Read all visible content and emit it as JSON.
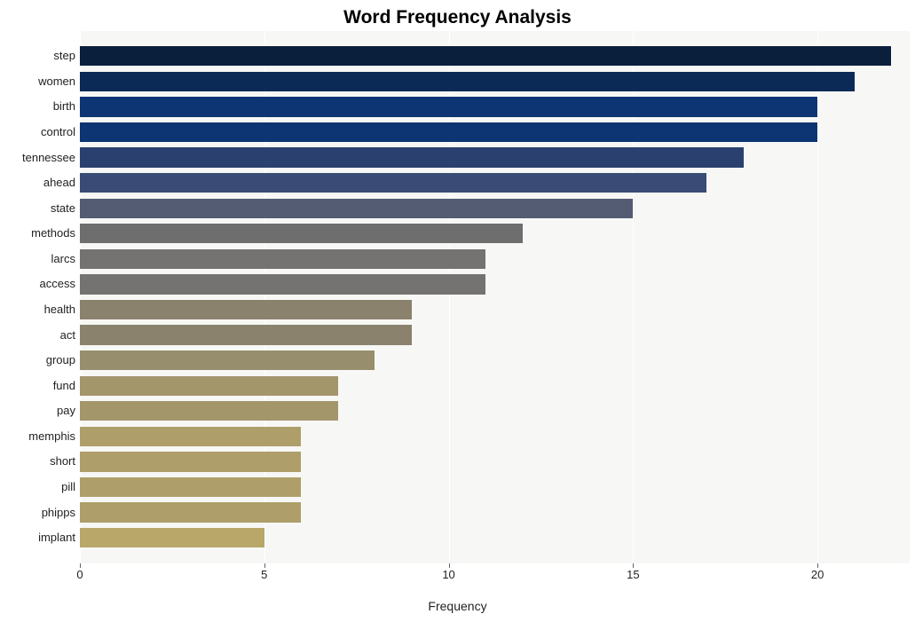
{
  "chart": {
    "type": "bar",
    "title": "Word Frequency Analysis",
    "title_fontsize": 21,
    "title_fontweight": "bold",
    "xlabel": "Frequency",
    "label_fontsize": 14,
    "background_color": "#ffffff",
    "plot_background": "#f7f7f5",
    "grid_color": "#ffffff",
    "xlim": [
      0,
      22.5
    ],
    "xtick_step": 5,
    "xticks": [
      0,
      5,
      10,
      15,
      20
    ],
    "bar_height_ratio": 0.78,
    "categories": [
      "step",
      "women",
      "birth",
      "control",
      "tennessee",
      "ahead",
      "state",
      "methods",
      "larcs",
      "access",
      "health",
      "act",
      "group",
      "fund",
      "pay",
      "memphis",
      "short",
      "pill",
      "phipps",
      "implant"
    ],
    "values": [
      22,
      21,
      20,
      20,
      18,
      17,
      15,
      12,
      11,
      11,
      9,
      9,
      8,
      7,
      7,
      6,
      6,
      6,
      6,
      5
    ],
    "bar_colors": [
      "#0a1f3c",
      "#0c2a56",
      "#0d3573",
      "#0d3573",
      "#2a416f",
      "#3a4c75",
      "#545c73",
      "#6e6e6e",
      "#757371",
      "#757371",
      "#8a826c",
      "#8a826c",
      "#978e6d",
      "#a3966b",
      "#a3966b",
      "#ae9f6a",
      "#ae9f6a",
      "#ae9f6a",
      "#ae9f6a",
      "#b8a768"
    ],
    "tick_fontsize": 13,
    "tick_color": "#222222"
  }
}
